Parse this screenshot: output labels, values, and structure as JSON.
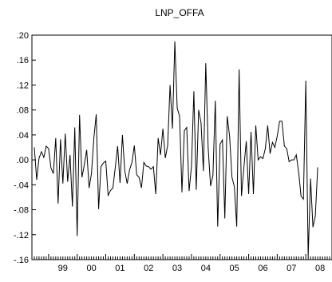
{
  "chart_data": {
    "type": "line",
    "title": "LNP_OFFA",
    "xlabel": "",
    "ylabel": "",
    "xlim": [
      1998.4167,
      2008.9167
    ],
    "ylim": [
      -0.16,
      0.2
    ],
    "grid": false,
    "legend": "none",
    "x_tick_labels": [
      "99",
      "00",
      "01",
      "02",
      "03",
      "04",
      "05",
      "06",
      "07",
      "08"
    ],
    "x_tick_values": [
      1999,
      2000,
      2001,
      2002,
      2003,
      2004,
      2005,
      2006,
      2007,
      2008
    ],
    "y_ticks": [
      {
        "value": 0.2,
        "label": ".20"
      },
      {
        "value": 0.16,
        "label": ".16"
      },
      {
        "value": 0.12,
        "label": ".12"
      },
      {
        "value": 0.08,
        "label": ".08"
      },
      {
        "value": 0.04,
        "label": ".04"
      },
      {
        "value": 0.0,
        "label": ".00"
      },
      {
        "value": -0.04,
        "label": "-.04"
      },
      {
        "value": -0.08,
        "label": "-.08"
      },
      {
        "value": -0.12,
        "label": "-.12"
      },
      {
        "value": -0.16,
        "label": "-.16"
      }
    ],
    "series": [
      {
        "start": "1998-07",
        "frequency": "monthly",
        "color": "#000000",
        "values": [
          0.02,
          -0.032,
          0.003,
          0.013,
          0.004,
          0.022,
          0.018,
          -0.013,
          -0.022,
          0.035,
          -0.07,
          0.033,
          -0.038,
          0.042,
          -0.035,
          0.008,
          -0.075,
          0.052,
          -0.122,
          0.072,
          -0.028,
          -0.008,
          0.016,
          -0.045,
          -0.022,
          0.035,
          0.073,
          -0.079,
          -0.011,
          -0.005,
          -0.002,
          -0.057,
          -0.049,
          -0.045,
          -0.012,
          0.022,
          -0.037,
          0.04,
          -0.018,
          -0.038,
          -0.016,
          -0.004,
          0.023,
          -0.024,
          -0.028,
          -0.045,
          -0.004,
          -0.01,
          -0.011,
          -0.015,
          -0.011,
          -0.055,
          0.035,
          0.008,
          0.05,
          0.003,
          0.023,
          0.12,
          0.05,
          0.19,
          0.083,
          0.07,
          -0.052,
          0.047,
          0.052,
          -0.05,
          -0.01,
          0.11,
          -0.048,
          0.08,
          0.06,
          -0.018,
          0.155,
          0.02,
          -0.042,
          -0.025,
          0.095,
          -0.107,
          0.025,
          0.032,
          -0.094,
          0.07,
          0.038,
          -0.028,
          -0.043,
          -0.107,
          0.145,
          -0.058,
          -0.012,
          0.03,
          -0.055,
          0.045,
          -0.055,
          0.055,
          0.0,
          0.005,
          0.002,
          0.018,
          0.055,
          0.01,
          0.028,
          0.02,
          0.038,
          0.062,
          0.062,
          0.022,
          0.018,
          -0.003,
          0.0,
          0.0,
          0.008,
          -0.02,
          -0.058,
          -0.063,
          0.127,
          -0.155,
          -0.03,
          -0.108,
          -0.09,
          -0.012
        ]
      }
    ]
  }
}
